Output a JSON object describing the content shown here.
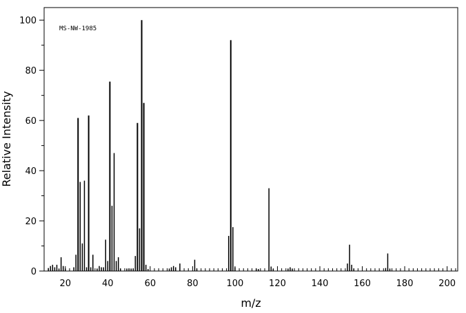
{
  "chart_data": {
    "type": "bar",
    "title": "",
    "annotation": "MS-NW-1985",
    "xlabel": "m/z",
    "ylabel": "Relative Intensity",
    "xlim": [
      10,
      205
    ],
    "ylim": [
      0,
      105
    ],
    "x_ticks": [
      20,
      40,
      60,
      80,
      100,
      120,
      140,
      160,
      180,
      200
    ],
    "y_ticks": [
      0,
      20,
      40,
      60,
      80,
      100
    ],
    "grid": false,
    "legend": "none",
    "color": "#000000",
    "peaks": [
      {
        "x": 12,
        "y": 1.2
      },
      {
        "x": 13,
        "y": 2.0
      },
      {
        "x": 14,
        "y": 2.5
      },
      {
        "x": 15,
        "y": 1.5
      },
      {
        "x": 16,
        "y": 2.5
      },
      {
        "x": 17,
        "y": 1.0
      },
      {
        "x": 18,
        "y": 5.5
      },
      {
        "x": 19,
        "y": 2.0
      },
      {
        "x": 20,
        "y": 1.0
      },
      {
        "x": 24,
        "y": 1.5
      },
      {
        "x": 25,
        "y": 6.5
      },
      {
        "x": 26,
        "y": 61.0
      },
      {
        "x": 27,
        "y": 35.5
      },
      {
        "x": 28,
        "y": 11.0
      },
      {
        "x": 29,
        "y": 36.0
      },
      {
        "x": 30,
        "y": 1.5
      },
      {
        "x": 31,
        "y": 62.0
      },
      {
        "x": 32,
        "y": 1.5
      },
      {
        "x": 33,
        "y": 6.5
      },
      {
        "x": 35,
        "y": 1.0
      },
      {
        "x": 36,
        "y": 2.0
      },
      {
        "x": 37,
        "y": 1.5
      },
      {
        "x": 38,
        "y": 1.5
      },
      {
        "x": 39,
        "y": 12.5
      },
      {
        "x": 40,
        "y": 4.0
      },
      {
        "x": 41,
        "y": 75.5
      },
      {
        "x": 42,
        "y": 26.0
      },
      {
        "x": 43,
        "y": 47.0
      },
      {
        "x": 44,
        "y": 4.0
      },
      {
        "x": 45,
        "y": 5.5
      },
      {
        "x": 46,
        "y": 1.0
      },
      {
        "x": 49,
        "y": 1.0
      },
      {
        "x": 50,
        "y": 1.0
      },
      {
        "x": 51,
        "y": 1.0
      },
      {
        "x": 52,
        "y": 1.0
      },
      {
        "x": 53,
        "y": 6.0
      },
      {
        "x": 54,
        "y": 59.0
      },
      {
        "x": 55,
        "y": 17.0
      },
      {
        "x": 56,
        "y": 100.0
      },
      {
        "x": 57,
        "y": 67.0
      },
      {
        "x": 58,
        "y": 2.5
      },
      {
        "x": 59,
        "y": 0.8
      },
      {
        "x": 69,
        "y": 1.0
      },
      {
        "x": 70,
        "y": 1.5
      },
      {
        "x": 71,
        "y": 2.0
      },
      {
        "x": 72,
        "y": 1.5
      },
      {
        "x": 74,
        "y": 3.0
      },
      {
        "x": 81,
        "y": 4.5
      },
      {
        "x": 82,
        "y": 1.0
      },
      {
        "x": 97,
        "y": 14.0
      },
      {
        "x": 98,
        "y": 92.0
      },
      {
        "x": 99,
        "y": 17.5
      },
      {
        "x": 100,
        "y": 1.5
      },
      {
        "x": 110,
        "y": 1.0
      },
      {
        "x": 111,
        "y": 0.8
      },
      {
        "x": 116,
        "y": 33.0
      },
      {
        "x": 117,
        "y": 1.8
      },
      {
        "x": 118,
        "y": 0.8
      },
      {
        "x": 125,
        "y": 1.0
      },
      {
        "x": 126,
        "y": 1.5
      },
      {
        "x": 127,
        "y": 1.0
      },
      {
        "x": 153,
        "y": 3.0
      },
      {
        "x": 154,
        "y": 10.5
      },
      {
        "x": 155,
        "y": 2.5
      },
      {
        "x": 156,
        "y": 1.0
      },
      {
        "x": 171,
        "y": 1.2
      },
      {
        "x": 172,
        "y": 7.0
      },
      {
        "x": 173,
        "y": 1.0
      }
    ]
  }
}
